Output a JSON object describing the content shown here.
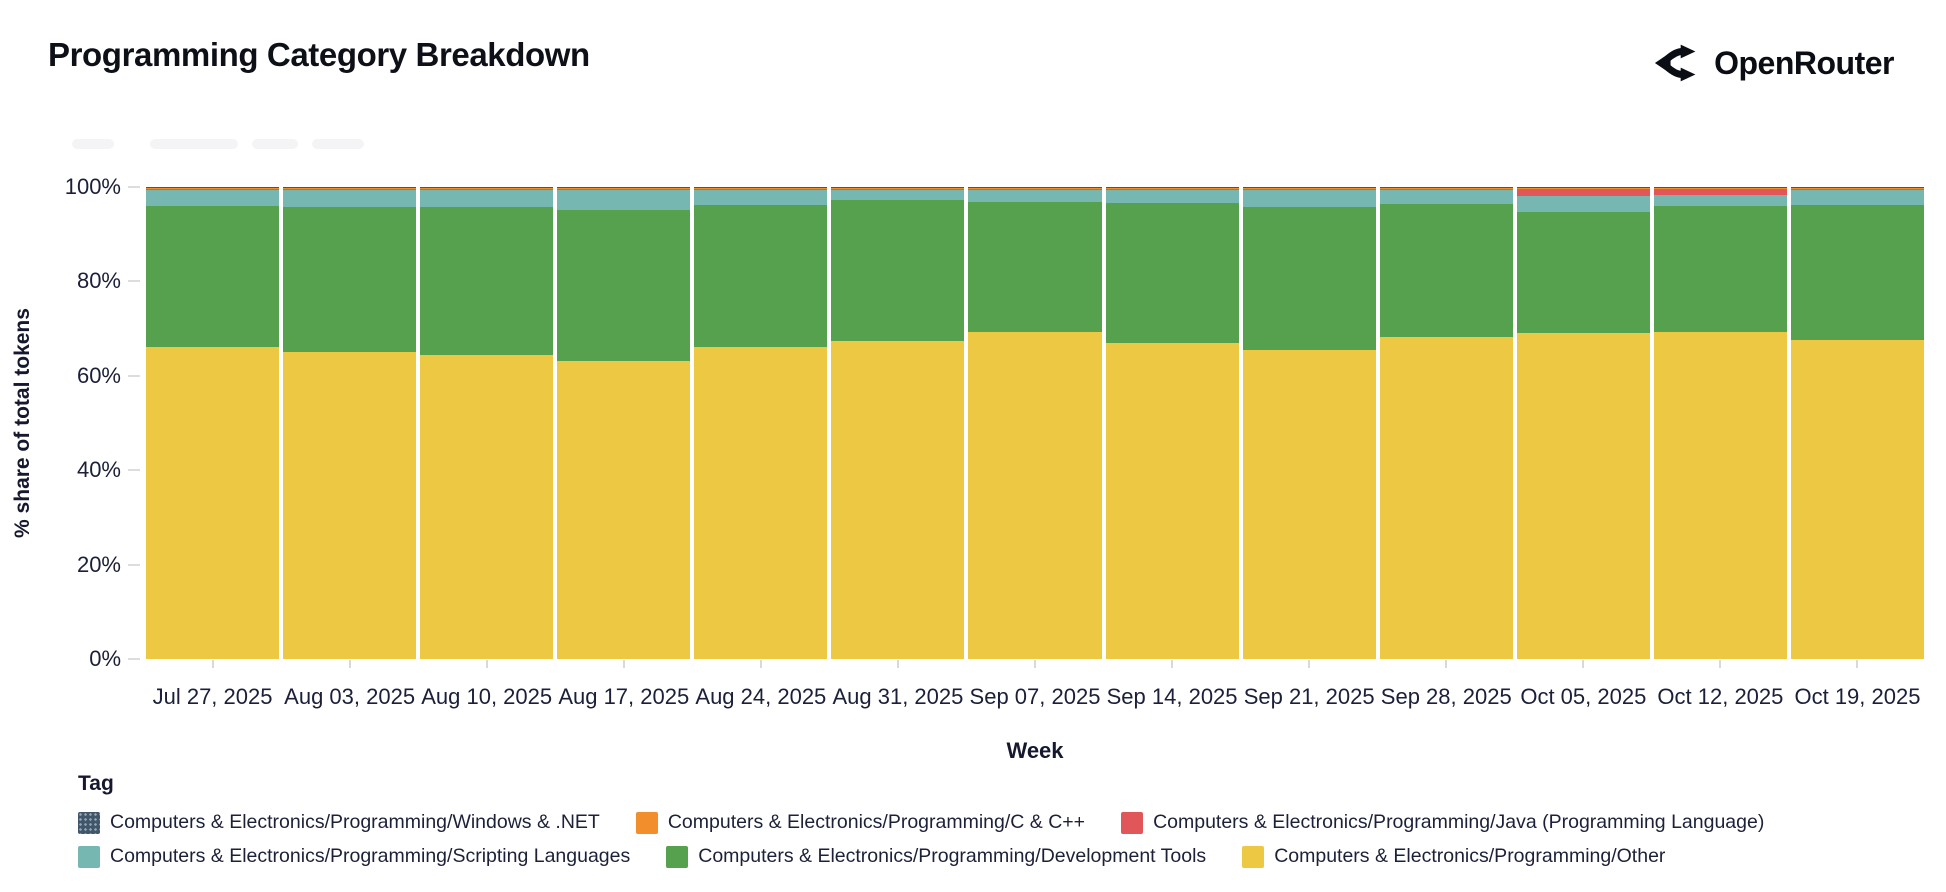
{
  "header": {
    "title": "Programming Category Breakdown",
    "brand": "OpenRouter"
  },
  "chart": {
    "ylabel": "% share of total tokens",
    "xlabel": "Week",
    "yticks": [
      {
        "label": "0%",
        "value": 0
      },
      {
        "label": "20%",
        "value": 20
      },
      {
        "label": "40%",
        "value": 40
      },
      {
        "label": "60%",
        "value": 60
      },
      {
        "label": "80%",
        "value": 80
      },
      {
        "label": "100%",
        "value": 100
      }
    ]
  },
  "legend": {
    "title": "Tag"
  },
  "chart_data": {
    "type": "bar",
    "stacked": true,
    "title": "Programming Category Breakdown",
    "xlabel": "Week",
    "ylabel": "% share of total tokens",
    "ylim": [
      0,
      100
    ],
    "legend_position": "bottom",
    "categories": [
      "Jul 27, 2025",
      "Aug 03, 2025",
      "Aug 10, 2025",
      "Aug 17, 2025",
      "Aug 24, 2025",
      "Aug 31, 2025",
      "Sep 07, 2025",
      "Sep 14, 2025",
      "Sep 21, 2025",
      "Sep 28, 2025",
      "Oct 05, 2025",
      "Oct 12, 2025",
      "Oct 19, 2025"
    ],
    "series": [
      {
        "name": "Computers & Electronics/Programming/Windows & .NET",
        "color": "#42566a",
        "pattern": "dots",
        "values": [
          0.1,
          0.1,
          0.1,
          0.1,
          0.1,
          0.1,
          0.1,
          0.1,
          0.1,
          0.1,
          0.1,
          0.1,
          0.1
        ]
      },
      {
        "name": "Computers & Electronics/Programming/C & C++",
        "color": "#f28e2b",
        "values": [
          0.4,
          0.4,
          0.4,
          0.4,
          0.4,
          0.4,
          0.4,
          0.4,
          0.4,
          0.4,
          0.4,
          0.4,
          0.4
        ]
      },
      {
        "name": "Computers & Electronics/Programming/Java (Programming Language)",
        "color": "#e15759",
        "values": [
          0.1,
          0.1,
          0.1,
          0.1,
          0.1,
          0.1,
          0.1,
          0.1,
          0.1,
          0.1,
          1.3,
          1.2,
          0.1
        ]
      },
      {
        "name": "Computers & Electronics/Programming/Scripting Languages",
        "color": "#76b7b2",
        "values": [
          3.5,
          3.6,
          3.7,
          4.2,
          3.2,
          2.2,
          2.5,
          2.7,
          3.6,
          3.0,
          3.5,
          2.4,
          3.2
        ]
      },
      {
        "name": "Computers & Electronics/Programming/Development Tools",
        "color": "#55a14e",
        "values": [
          29.9,
          30.8,
          31.2,
          32.0,
          30.0,
          29.8,
          27.7,
          29.7,
          30.3,
          28.1,
          25.7,
          26.6,
          28.7
        ]
      },
      {
        "name": "Computers & Electronics/Programming/Other",
        "color": "#ecc843",
        "values": [
          66.0,
          65.0,
          64.5,
          63.2,
          66.2,
          67.4,
          69.2,
          67.0,
          65.5,
          68.3,
          69.0,
          69.3,
          67.5
        ]
      }
    ],
    "stack_order_bottom_to_top": [
      5,
      4,
      3,
      2,
      1,
      0
    ],
    "legend_rows": [
      [
        0,
        1,
        2
      ],
      [
        3,
        4,
        5
      ]
    ]
  }
}
